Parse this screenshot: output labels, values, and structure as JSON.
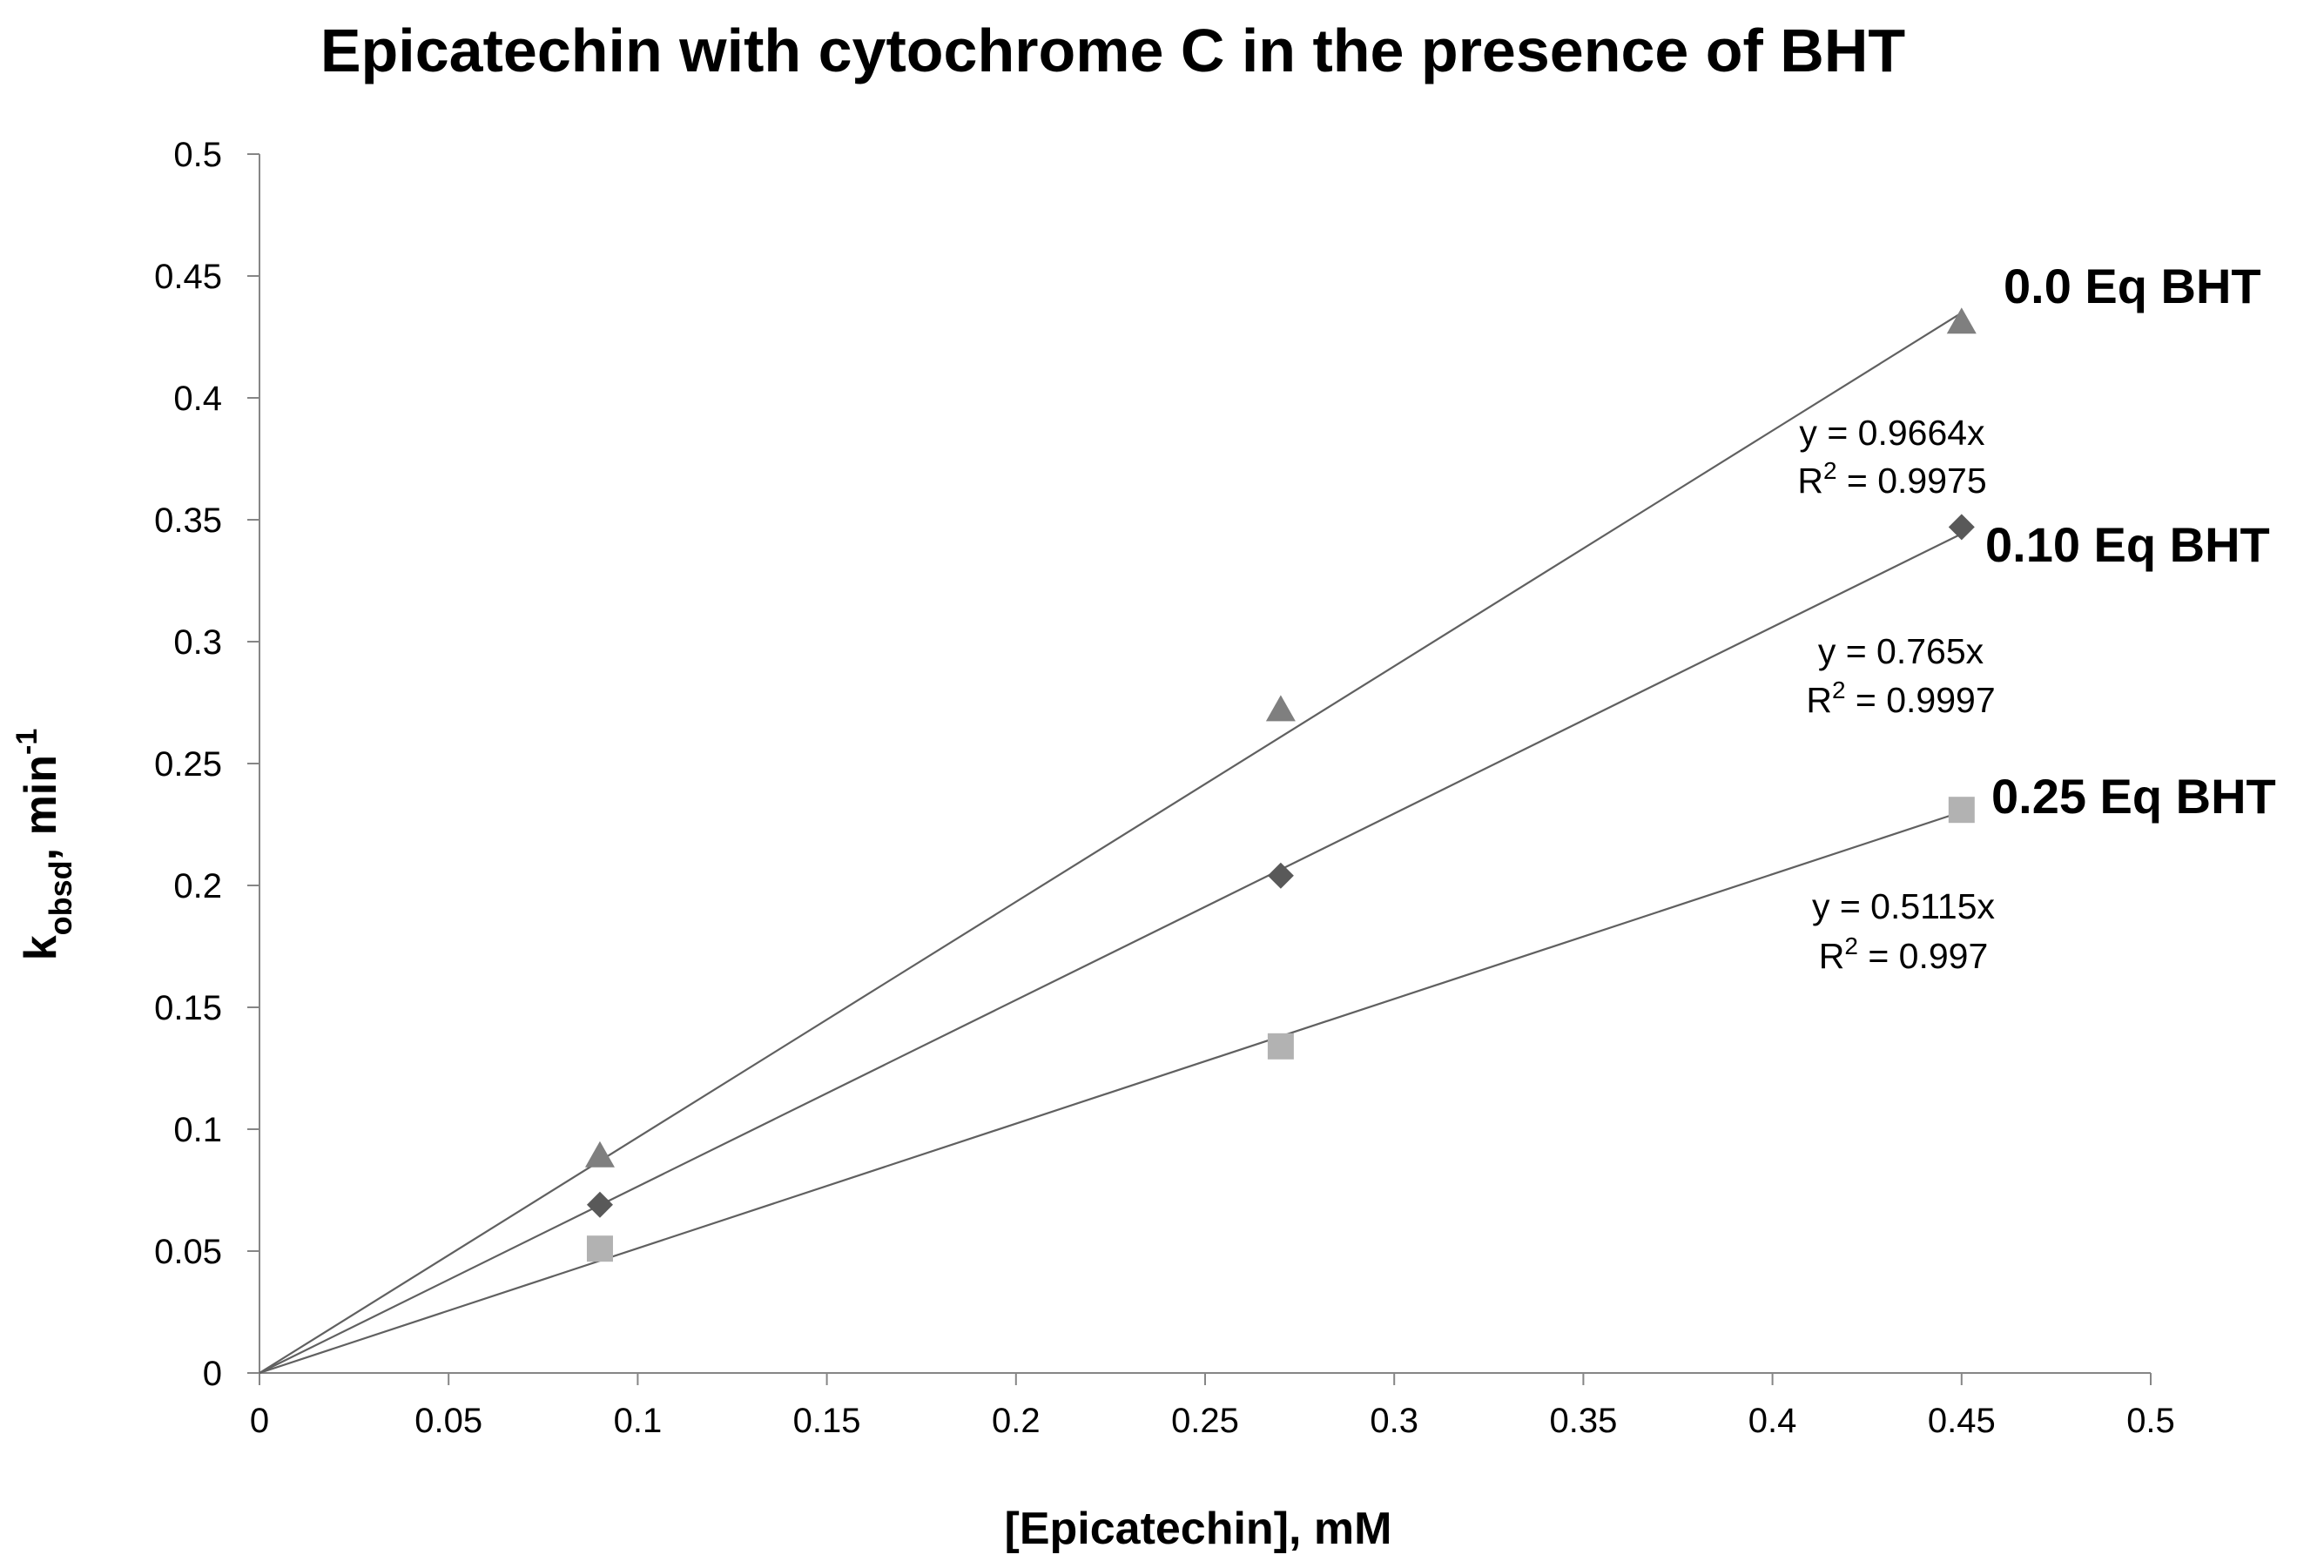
{
  "chart_data": {
    "type": "scatter",
    "title": "Epicatechin with cytochrome C in the presence of BHT",
    "xlabel": "[Epicatechin],  mM",
    "ylabel": {
      "main": "k",
      "subscript": "obsd",
      "after": ",  min",
      "superscript": "-1"
    },
    "xlim": [
      0,
      0.5
    ],
    "ylim": [
      0,
      0.5
    ],
    "x_ticks": [
      "0",
      "0.05",
      "0.1",
      "0.15",
      "0.2",
      "0.25",
      "0.3",
      "0.35",
      "0.4",
      "0.45",
      "0.5"
    ],
    "y_ticks": [
      "0",
      "0.05",
      "0.1",
      "0.15",
      "0.2",
      "0.25",
      "0.3",
      "0.35",
      "0.4",
      "0.45",
      "0.5"
    ],
    "grid": false,
    "series": [
      {
        "name": "0.0 Eq BHT",
        "marker": "triangle",
        "color": "#7f7f7f",
        "x": [
          0.09,
          0.27,
          0.45
        ],
        "y": [
          0.089,
          0.272,
          0.431
        ],
        "trendline": {
          "slope": 0.9664,
          "equation": "y = 0.9664x",
          "r2_prefix": "R",
          "r2_sup": "2",
          "r2_value": " = 0.9975"
        }
      },
      {
        "name": "0.10 Eq BHT",
        "marker": "diamond",
        "color": "#595959",
        "x": [
          0.09,
          0.27,
          0.45
        ],
        "y": [
          0.069,
          0.204,
          0.347
        ],
        "trendline": {
          "slope": 0.765,
          "equation": "y = 0.765x",
          "r2_prefix": "R",
          "r2_sup": "2",
          "r2_value": " = 0.9997"
        }
      },
      {
        "name": "0.25 Eq BHT",
        "marker": "square",
        "color": "#b2b2b2",
        "x": [
          0.09,
          0.27,
          0.45
        ],
        "y": [
          0.051,
          0.134,
          0.231
        ],
        "trendline": {
          "slope": 0.5115,
          "equation": "y = 0.5115x",
          "r2_prefix": "R",
          "r2_sup": "2",
          "r2_value": " = 0.997"
        }
      }
    ]
  }
}
